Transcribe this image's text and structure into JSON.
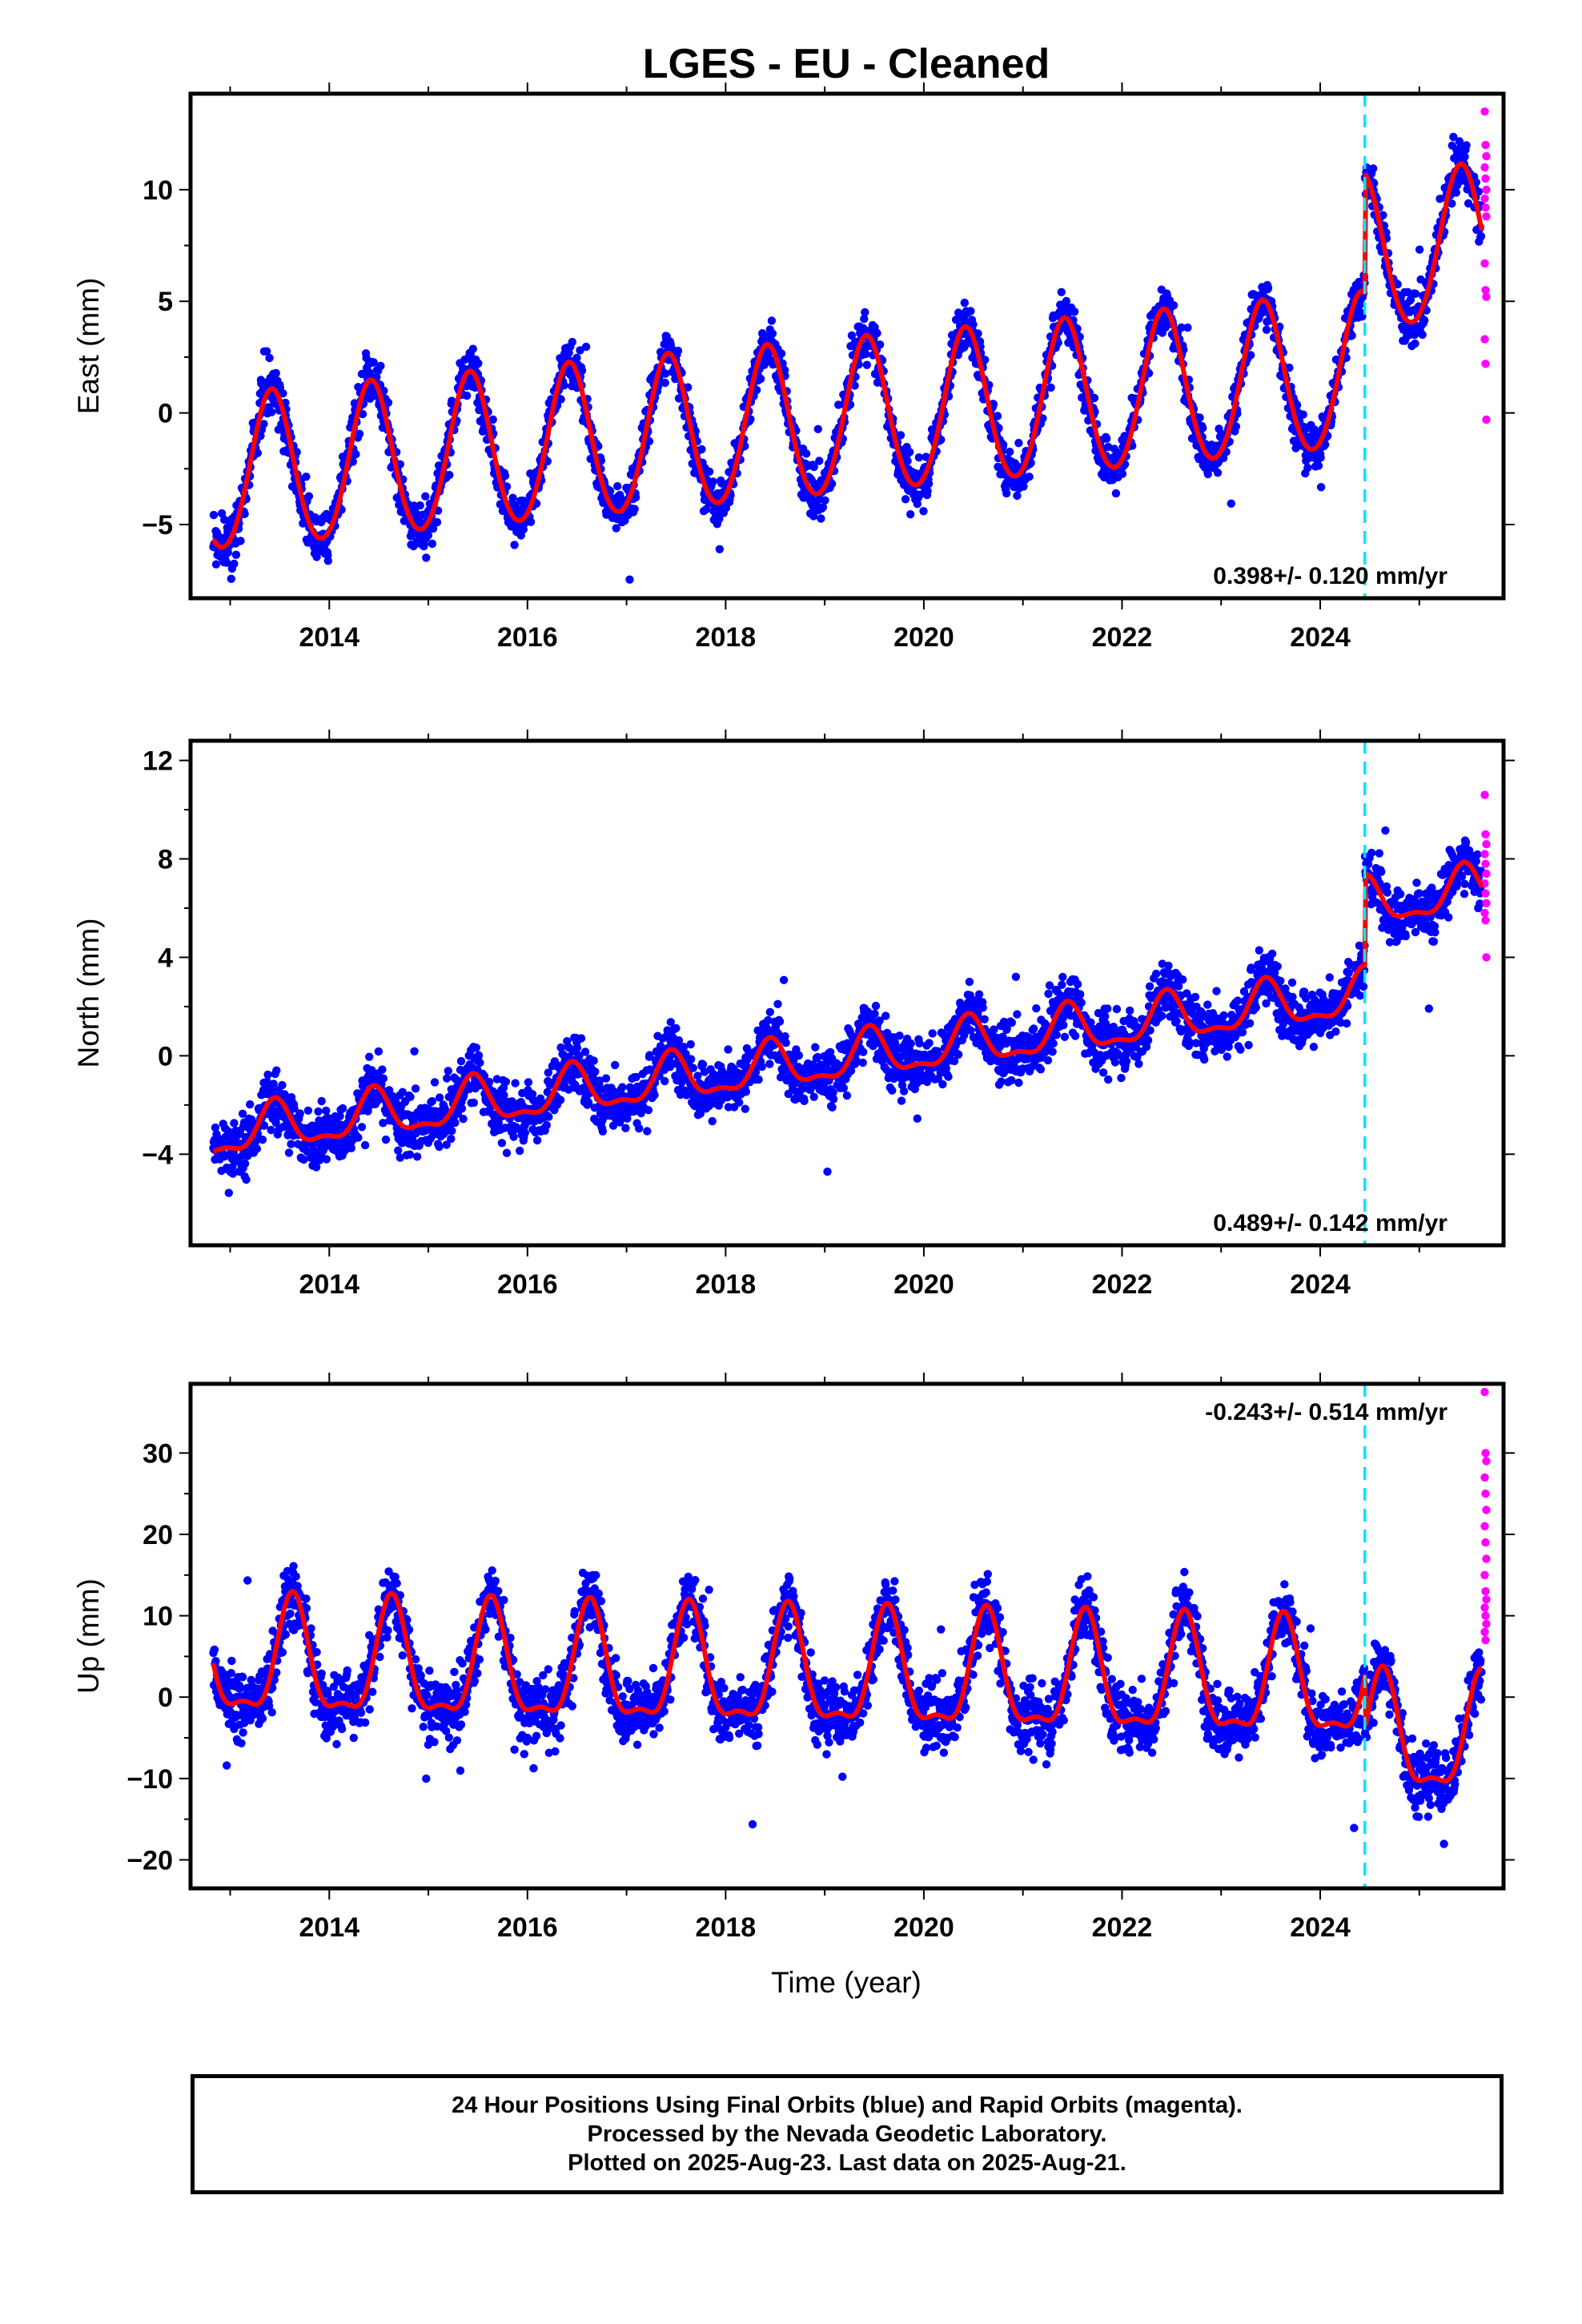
{
  "figure": {
    "title": "LGES  - EU - Cleaned",
    "x_label": "Time (year)",
    "caption_lines": [
      "24 Hour Positions Using Final Orbits (blue) and Rapid Orbits (magenta).",
      "Processed by the Nevada Geodetic Laboratory.",
      "Plotted on 2025-Aug-23. Last data on 2025-Aug-21."
    ],
    "colors": {
      "final_orbits": "#0000ff",
      "rapid_orbits": "#ff00ff",
      "model_fit": "#ff0000",
      "event_line": "#00e5ff",
      "frame": "#000000"
    }
  },
  "chart_data": [
    {
      "type": "scatter",
      "component": "east",
      "ylabel": "East (mm)",
      "rate_text": "0.398+/- 0.120 mm/yr",
      "xlim": [
        2012.6,
        2025.85
      ],
      "ylim": [
        -8.3,
        14.3
      ],
      "x_ticks": [
        2014,
        2016,
        2018,
        2020,
        2022,
        2024
      ],
      "y_ticks": [
        -5,
        0,
        5,
        10
      ],
      "y_tick_labels": [
        "−5",
        "0",
        "5",
        "10"
      ],
      "event_line_x": 2024.45,
      "rate_mm_per_yr": 0.398,
      "rate_sigma": 0.12,
      "model": {
        "start_year": 2012.83,
        "end_year": 2025.63,
        "offset_at_start": -2.85,
        "annual_amplitude": 3.45,
        "annual_peak_phase": 0.42,
        "semiannual_amplitude": 0.25,
        "step_year": 2024.45,
        "step_size": 5.3,
        "scatter_sigma": 0.9
      },
      "rapid_values": [
        13.5,
        12,
        11.5,
        11,
        10.5,
        10,
        9.6,
        9.2,
        8.8,
        6.7,
        5.5,
        5.2,
        3.3,
        2.2,
        -0.3
      ]
    },
    {
      "type": "scatter",
      "component": "north",
      "ylabel": "North (mm)",
      "rate_text": "0.489+/- 0.142 mm/yr",
      "xlim": [
        2012.6,
        2025.85
      ],
      "ylim": [
        -7.7,
        12.8
      ],
      "x_ticks": [
        2014,
        2016,
        2018,
        2020,
        2022,
        2024
      ],
      "y_ticks": [
        -4,
        0,
        4,
        8,
        12
      ],
      "y_tick_labels": [
        "−4",
        "0",
        "4",
        "8",
        "12"
      ],
      "event_line_x": 2024.45,
      "rate_mm_per_yr": 0.489,
      "rate_sigma": 0.142,
      "model": {
        "start_year": 2012.83,
        "end_year": 2025.63,
        "offset_at_start": -3.25,
        "annual_amplitude": 0.9,
        "annual_peak_phase": 0.45,
        "semiannual_amplitude": 0.35,
        "step_year": 2024.45,
        "step_size": 3.7,
        "scatter_sigma": 0.95
      },
      "rapid_values": [
        10.6,
        9,
        8.6,
        8.2,
        7.8,
        7.4,
        7,
        6.6,
        6.2,
        5.8,
        5.5,
        4
      ]
    },
    {
      "type": "scatter",
      "component": "up",
      "ylabel": "Up (mm)",
      "rate_text": "-0.243+/- 0.514 mm/yr",
      "xlim": [
        2012.6,
        2025.85
      ],
      "ylim": [
        -23.5,
        38.5
      ],
      "x_ticks": [
        2014,
        2016,
        2018,
        2020,
        2022,
        2024
      ],
      "y_ticks": [
        -20,
        -10,
        0,
        10,
        20,
        30
      ],
      "y_tick_labels": [
        "−20",
        "−10",
        "0",
        "10",
        "20",
        "30"
      ],
      "event_line_x": 2024.45,
      "rate_mm_per_yr": -0.243,
      "rate_sigma": 0.514,
      "model": {
        "start_year": 2012.83,
        "end_year": 2025.63,
        "offset_at_start": 4.0,
        "annual_amplitude": 6.8,
        "annual_peak_phase": 0.63,
        "semiannual_amplitude": 2.4,
        "step_year": 2024.45,
        "step_size": -6.5,
        "scatter_sigma": 3.3
      },
      "rapid_values": [
        37.5,
        30,
        29,
        27,
        25,
        23,
        21,
        19,
        17,
        15,
        13,
        12,
        11,
        10,
        9,
        8,
        7
      ]
    }
  ]
}
